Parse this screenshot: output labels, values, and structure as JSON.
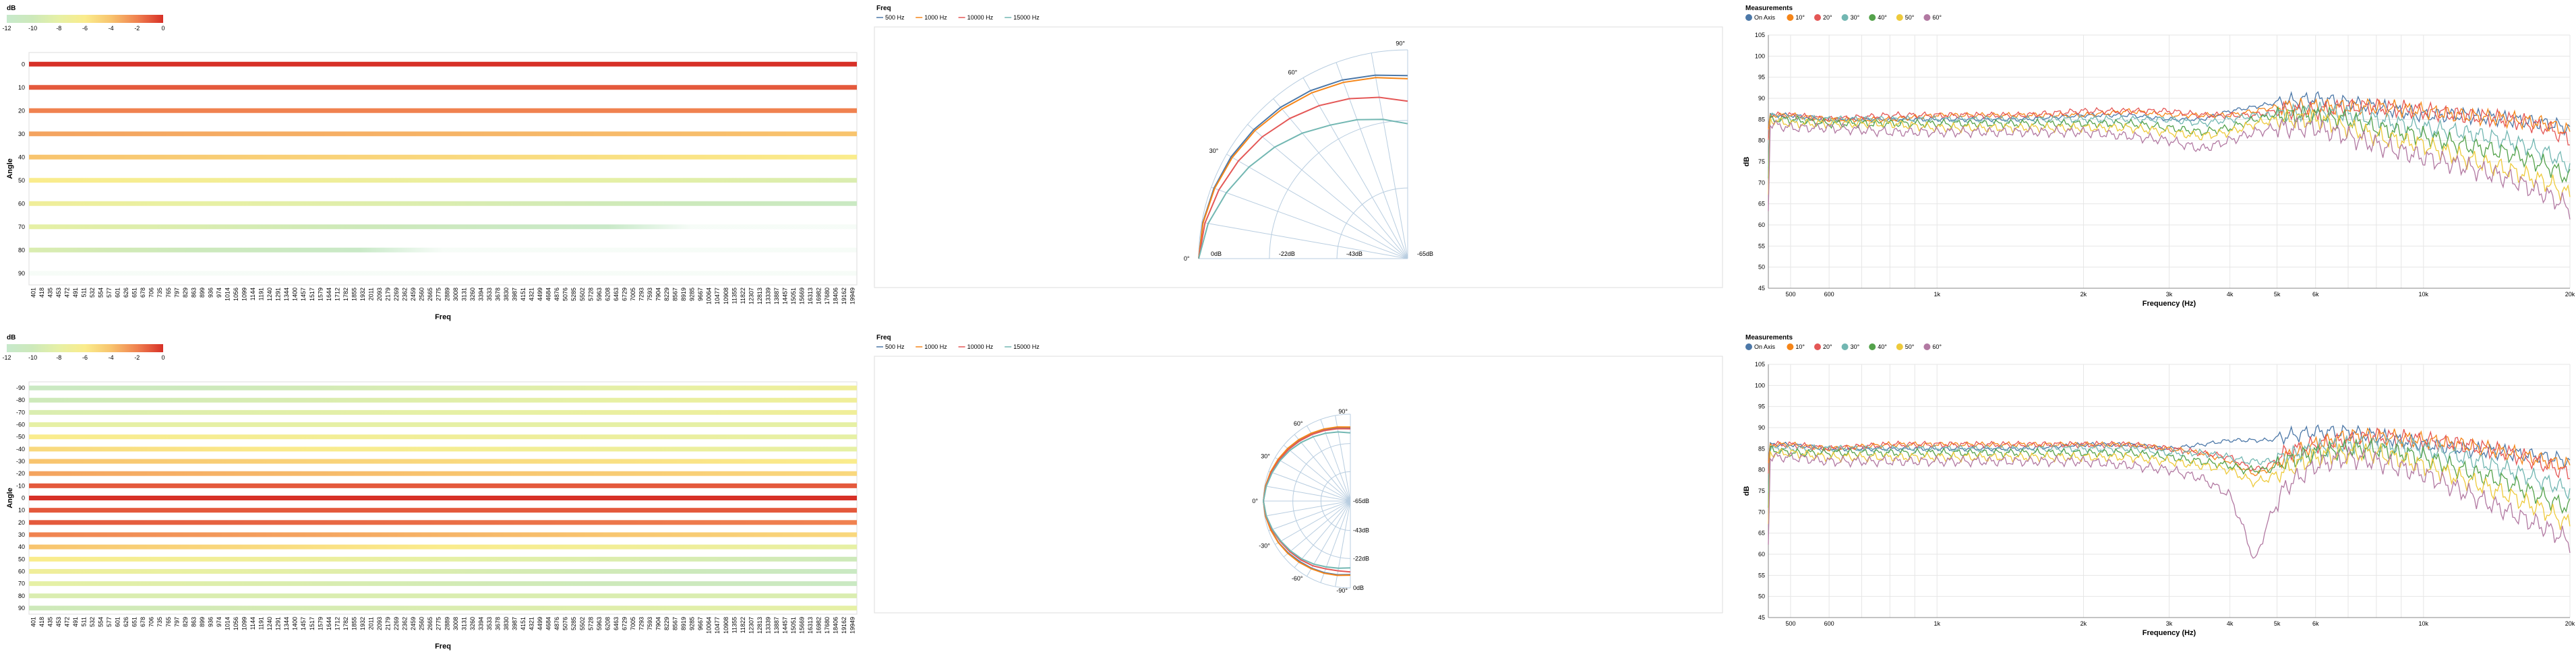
{
  "chart_data": [
    {
      "id": "heatmap-top",
      "type": "heatmap",
      "legend": {
        "title": "dB",
        "ticks": [
          -12,
          -10,
          -8,
          -6,
          -4,
          -2,
          0
        ],
        "domain": [
          -12,
          0
        ]
      },
      "xlabel": "Freq",
      "ylabel": "Angle",
      "x": [
        "401",
        "418",
        "435",
        "453",
        "472",
        "491",
        "511",
        "532",
        "554",
        "577",
        "601",
        "626",
        "651",
        "678",
        "706",
        "735",
        "765",
        "797",
        "829",
        "863",
        "899",
        "936",
        "974",
        "1014",
        "1056",
        "1099",
        "1144",
        "1191",
        "1240",
        "1291",
        "1344",
        "1400",
        "1457",
        "1517",
        "1579",
        "1644",
        "1712",
        "1782",
        "1855",
        "1932",
        "2011",
        "2093",
        "2179",
        "2269",
        "2362",
        "2459",
        "2560",
        "2665",
        "2775",
        "2889",
        "3008",
        "3131",
        "3260",
        "3394",
        "3533",
        "3678",
        "3830",
        "3987",
        "4151",
        "4321",
        "4499",
        "4684",
        "4876",
        "5076",
        "5285",
        "5502",
        "5728",
        "5963",
        "6208",
        "6463",
        "6729",
        "7005",
        "7293",
        "7593",
        "7904",
        "8229",
        "8567",
        "8919",
        "9285",
        "9667",
        "10064",
        "10477",
        "10908",
        "11355",
        "11822",
        "12307",
        "12813",
        "13339",
        "13887",
        "14457",
        "15051",
        "15669",
        "16313",
        "16982",
        "17680",
        "18406",
        "19162",
        "19949"
      ],
      "y": [
        0,
        10,
        20,
        30,
        40,
        50,
        60,
        70,
        80,
        90
      ],
      "row_levels": [
        0,
        -1,
        -2,
        -3,
        -4,
        -6,
        -7,
        -8,
        -9,
        -12
      ],
      "row_slopes": [
        0,
        0,
        0,
        -1,
        -2,
        -3,
        -4,
        -5,
        -6,
        -3
      ]
    },
    {
      "id": "polar-top",
      "type": "line",
      "subtype": "polar",
      "legend": {
        "title": "Freq",
        "position": "top-left"
      },
      "series": [
        {
          "name": "500 Hz",
          "color": "#4c78a8"
        },
        {
          "name": "1000 Hz",
          "color": "#f58518"
        },
        {
          "name": "10000 Hz",
          "color": "#e45756"
        },
        {
          "name": "15000 Hz",
          "color": "#72b7b2"
        }
      ],
      "angle_labels": [
        "0°",
        "30°",
        "60°",
        "90°"
      ],
      "radial_labels": [
        "0dB",
        "-22dB",
        "-43dB",
        "-65dB"
      ],
      "angles_deg": [
        0,
        10,
        20,
        30,
        40,
        50,
        60,
        70,
        80,
        90
      ],
      "values_db": [
        [
          0,
          -0.3,
          -0.9,
          -1.6,
          -2.5,
          -3.5,
          -4.6,
          -5.8,
          -7.0,
          -8.0
        ],
        [
          0,
          -0.4,
          -1.1,
          -2.0,
          -3.0,
          -4.2,
          -5.4,
          -6.6,
          -7.8,
          -9.0
        ],
        [
          0,
          -1.0,
          -2.5,
          -4.2,
          -6.0,
          -8.0,
          -10.0,
          -12.0,
          -14.0,
          -16.0
        ],
        [
          0,
          -2.0,
          -5.0,
          -8.0,
          -11.0,
          -14.0,
          -17.0,
          -19.0,
          -21.0,
          -23.0
        ]
      ]
    },
    {
      "id": "spectrum-top",
      "type": "line",
      "legend": {
        "title": "Measurements",
        "position": "top-left",
        "items": [
          "On Axis",
          "10°",
          "20°",
          "30°",
          "40°",
          "50°",
          "60°"
        ],
        "colors": [
          "#4c78a8",
          "#f58518",
          "#e45756",
          "#72b7b2",
          "#54a24b",
          "#eeca3b",
          "#b279a2"
        ]
      },
      "xlabel": "Frequency (Hz)",
      "ylabel": "dB",
      "xscale": "log",
      "xlim": [
        450,
        20000
      ],
      "ylim": [
        45,
        105
      ],
      "xticks": [
        "500",
        "600",
        "1k",
        "2k",
        "3k",
        "4k",
        "5k",
        "6k",
        "10k",
        "20k"
      ],
      "xtick_values": [
        500,
        600,
        1000,
        2000,
        3000,
        4000,
        5000,
        6000,
        10000,
        20000
      ],
      "yticks": [
        45,
        50,
        55,
        60,
        65,
        70,
        75,
        80,
        85,
        90,
        95,
        100,
        105
      ],
      "grid": true,
      "freq": [
        450,
        500,
        600,
        800,
        1000,
        1500,
        2000,
        2500,
        3000,
        3500,
        4000,
        4500,
        5000,
        6000,
        7000,
        8000,
        10000,
        12000,
        15000,
        18000,
        20000
      ],
      "series": [
        {
          "name": "On Axis",
          "color": "#4c78a8",
          "values": [
            86,
            86,
            85,
            85,
            85,
            85,
            86,
            86,
            85,
            85,
            87,
            88,
            89,
            90,
            89,
            88,
            86,
            86,
            85,
            84,
            83
          ]
        },
        {
          "name": "10°",
          "color": "#f58518",
          "values": [
            86,
            86,
            85,
            85,
            86,
            86,
            86,
            87,
            86,
            86,
            86,
            87,
            88,
            88,
            88,
            88,
            87,
            86,
            85,
            84,
            82
          ]
        },
        {
          "name": "20°",
          "color": "#e45756",
          "values": [
            86,
            86,
            85,
            86,
            86,
            86,
            87,
            87,
            87,
            86,
            86,
            86,
            87,
            87,
            88,
            88,
            87,
            86,
            85,
            83,
            80
          ]
        },
        {
          "name": "30°",
          "color": "#72b7b2",
          "values": [
            86,
            85,
            85,
            85,
            85,
            85,
            85,
            85,
            85,
            84,
            85,
            86,
            86,
            87,
            86,
            85,
            83,
            82,
            80,
            77,
            74
          ]
        },
        {
          "name": "40°",
          "color": "#54a24b",
          "values": [
            85,
            85,
            84,
            84,
            84,
            84,
            84,
            84,
            83,
            82,
            83,
            85,
            86,
            86,
            85,
            83,
            81,
            79,
            77,
            74,
            71
          ]
        },
        {
          "name": "50°",
          "color": "#eeca3b",
          "values": [
            85,
            84,
            84,
            84,
            83,
            83,
            83,
            83,
            82,
            81,
            82,
            84,
            85,
            85,
            83,
            81,
            79,
            76,
            73,
            70,
            67
          ]
        },
        {
          "name": "60°",
          "color": "#b279a2",
          "values": [
            84,
            83,
            83,
            82,
            82,
            82,
            82,
            81,
            80,
            78,
            80,
            82,
            83,
            83,
            81,
            79,
            76,
            74,
            71,
            67,
            64
          ]
        }
      ]
    },
    {
      "id": "heatmap-bottom",
      "type": "heatmap",
      "legend": {
        "title": "dB",
        "ticks": [
          -12,
          -10,
          -8,
          -6,
          -4,
          -2,
          0
        ],
        "domain": [
          -12,
          0
        ]
      },
      "xlabel": "Freq",
      "ylabel": "Angle",
      "x": [
        "401",
        "418",
        "435",
        "453",
        "472",
        "491",
        "511",
        "532",
        "554",
        "577",
        "601",
        "626",
        "651",
        "678",
        "706",
        "735",
        "765",
        "797",
        "829",
        "863",
        "899",
        "936",
        "974",
        "1014",
        "1056",
        "1099",
        "1144",
        "1191",
        "1240",
        "1291",
        "1344",
        "1400",
        "1457",
        "1517",
        "1579",
        "1644",
        "1712",
        "1782",
        "1855",
        "1932",
        "2011",
        "2093",
        "2179",
        "2269",
        "2362",
        "2459",
        "2560",
        "2665",
        "2775",
        "2889",
        "3008",
        "3131",
        "3260",
        "3394",
        "3533",
        "3678",
        "3830",
        "3987",
        "4151",
        "4321",
        "4499",
        "4684",
        "4876",
        "5076",
        "5285",
        "5502",
        "5728",
        "5963",
        "6208",
        "6463",
        "6729",
        "7005",
        "7293",
        "7593",
        "7904",
        "8229",
        "8567",
        "8919",
        "9285",
        "9667",
        "10064",
        "10477",
        "10908",
        "11355",
        "11822",
        "12307",
        "12813",
        "13339",
        "13887",
        "14457",
        "15051",
        "15669",
        "16313",
        "16982",
        "17680",
        "18406",
        "19162",
        "19949"
      ],
      "y": [
        -90,
        -80,
        -70,
        -60,
        -50,
        -40,
        -30,
        -20,
        -10,
        0,
        10,
        20,
        30,
        40,
        50,
        60,
        70,
        80,
        90
      ],
      "row_levels": [
        -11,
        -10,
        -9,
        -8,
        -6,
        -5,
        -4,
        -3,
        -1,
        0,
        -1,
        -1,
        -2,
        -4,
        -6,
        -7,
        -8,
        -9,
        -10
      ],
      "row_slopes": [
        4,
        3,
        2,
        0,
        -2,
        -3,
        -2,
        -2,
        0,
        0,
        0,
        -1,
        -3,
        -4,
        -4,
        -4,
        -3,
        0,
        2
      ]
    },
    {
      "id": "polar-bottom",
      "type": "line",
      "subtype": "polar",
      "legend": {
        "title": "Freq",
        "position": "top-left"
      },
      "series": [
        {
          "name": "500 Hz",
          "color": "#4c78a8"
        },
        {
          "name": "1000 Hz",
          "color": "#f58518"
        },
        {
          "name": "10000 Hz",
          "color": "#e45756"
        },
        {
          "name": "15000 Hz",
          "color": "#72b7b2"
        }
      ],
      "angle_labels": [
        "-90°",
        "-60°",
        "-30°",
        "0°",
        "30°",
        "60°",
        "90°"
      ],
      "radial_labels": [
        "0dB",
        "-22dB",
        "-43dB",
        "-65dB"
      ],
      "angles_deg": [
        -90,
        -80,
        -70,
        -60,
        -50,
        -40,
        -30,
        -20,
        -10,
        0,
        10,
        20,
        30,
        40,
        50,
        60,
        70,
        80,
        90
      ],
      "values_db": [
        [
          -10,
          -9,
          -8,
          -7,
          -6,
          -4.5,
          -3,
          -1.8,
          -0.7,
          0,
          -0.7,
          -1.6,
          -2.8,
          -4.2,
          -5.6,
          -7,
          -8.3,
          -9.4,
          -10.5
        ],
        [
          -9.5,
          -8.5,
          -7.5,
          -6.5,
          -5.3,
          -4,
          -2.8,
          -1.6,
          -0.6,
          0,
          -0.6,
          -1.5,
          -2.6,
          -3.8,
          -5,
          -6.4,
          -7.6,
          -8.7,
          -9.6
        ],
        [
          -12,
          -12,
          -11,
          -9,
          -7.5,
          -6,
          -4.5,
          -2.6,
          -1,
          0,
          -1,
          -2.2,
          -3.5,
          -4.8,
          -6.2,
          -7.5,
          -8.8,
          -10,
          -11
        ],
        [
          -15,
          -14,
          -12.5,
          -10.5,
          -8.5,
          -6.8,
          -5,
          -3,
          -1.2,
          0,
          -1.2,
          -2.8,
          -4.3,
          -6,
          -7.8,
          -9.5,
          -11,
          -12.5,
          -14
        ]
      ]
    },
    {
      "id": "spectrum-bottom",
      "type": "line",
      "legend": {
        "title": "Measurements",
        "position": "top-left",
        "items": [
          "On Axis",
          "10°",
          "20°",
          "30°",
          "40°",
          "50°",
          "60°"
        ],
        "colors": [
          "#4c78a8",
          "#f58518",
          "#e45756",
          "#72b7b2",
          "#54a24b",
          "#eeca3b",
          "#b279a2"
        ]
      },
      "xlabel": "Frequency (Hz)",
      "ylabel": "dB",
      "xscale": "log",
      "xlim": [
        450,
        20000
      ],
      "ylim": [
        45,
        105
      ],
      "xticks": [
        "500",
        "600",
        "1k",
        "2k",
        "3k",
        "4k",
        "5k",
        "6k",
        "10k",
        "20k"
      ],
      "xtick_values": [
        500,
        600,
        1000,
        2000,
        3000,
        4000,
        5000,
        6000,
        10000,
        20000
      ],
      "yticks": [
        45,
        50,
        55,
        60,
        65,
        70,
        75,
        80,
        85,
        90,
        95,
        100,
        105
      ],
      "grid": true,
      "freq": [
        450,
        500,
        600,
        800,
        1000,
        1500,
        2000,
        2500,
        3000,
        3500,
        4000,
        4300,
        4500,
        4800,
        5200,
        6000,
        7000,
        8000,
        10000,
        12000,
        15000,
        18000,
        20000
      ],
      "series": [
        {
          "name": "On Axis",
          "color": "#4c78a8",
          "values": [
            86,
            86,
            85,
            85,
            85,
            85,
            86,
            86,
            85,
            86,
            87,
            87,
            87,
            87,
            88,
            89,
            89,
            88,
            86,
            85,
            84,
            83,
            82
          ]
        },
        {
          "name": "10°",
          "color": "#f58518",
          "values": [
            86,
            86,
            85,
            86,
            86,
            86,
            86,
            86,
            85,
            84,
            82,
            80,
            79,
            80,
            83,
            86,
            88,
            88,
            87,
            86,
            84,
            82,
            81
          ]
        },
        {
          "name": "20°",
          "color": "#e45756",
          "values": [
            86,
            86,
            85,
            86,
            86,
            86,
            86,
            86,
            85,
            84,
            83,
            81,
            80,
            81,
            84,
            86,
            87,
            88,
            87,
            86,
            84,
            81,
            79
          ]
        },
        {
          "name": "30°",
          "color": "#72b7b2",
          "values": [
            85,
            85,
            85,
            85,
            85,
            85,
            85,
            85,
            84,
            84,
            83,
            82,
            82,
            82,
            83,
            85,
            86,
            86,
            85,
            83,
            80,
            77,
            75
          ]
        },
        {
          "name": "40°",
          "color": "#54a24b",
          "values": [
            85,
            84,
            84,
            84,
            84,
            84,
            84,
            84,
            83,
            82,
            81,
            80,
            80,
            80,
            82,
            84,
            85,
            85,
            83,
            80,
            77,
            73,
            71
          ]
        },
        {
          "name": "50°",
          "color": "#eeca3b",
          "values": [
            84,
            84,
            83,
            83,
            83,
            83,
            83,
            83,
            82,
            81,
            80,
            78,
            77,
            78,
            80,
            83,
            84,
            84,
            81,
            78,
            74,
            70,
            67
          ]
        },
        {
          "name": "60°",
          "color": "#b279a2",
          "values": [
            83,
            83,
            82,
            82,
            82,
            82,
            82,
            81,
            80,
            78,
            74,
            65,
            58,
            68,
            76,
            81,
            83,
            82,
            79,
            75,
            70,
            66,
            63
          ]
        }
      ]
    }
  ]
}
